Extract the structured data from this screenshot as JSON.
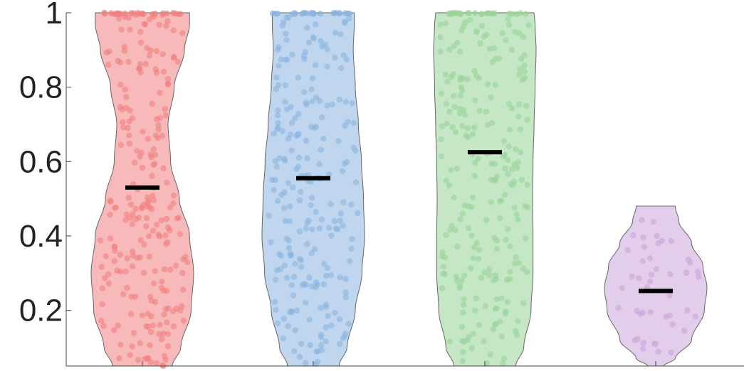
{
  "chart_data": {
    "type": "violin",
    "title": "",
    "xlabel": "",
    "ylabel": "",
    "ylim": [
      0.05,
      1.0
    ],
    "yticks": [
      0.2,
      0.4,
      0.6,
      0.8,
      1
    ],
    "ytick_labels": [
      "0.2",
      "0.4",
      "0.6",
      "0.8",
      "1"
    ],
    "grid": false,
    "series": [
      {
        "color": "#f08080",
        "median": 0.53,
        "range": [
          0.05,
          1.0
        ],
        "n_points": 230,
        "density_profile": [
          [
            0.05,
            0.58
          ],
          [
            0.1,
            0.75
          ],
          [
            0.2,
            0.95
          ],
          [
            0.3,
            1.0
          ],
          [
            0.4,
            0.92
          ],
          [
            0.5,
            0.72
          ],
          [
            0.6,
            0.55
          ],
          [
            0.7,
            0.5
          ],
          [
            0.8,
            0.62
          ],
          [
            0.9,
            0.82
          ],
          [
            0.97,
            0.92
          ],
          [
            1.0,
            0.92
          ]
        ]
      },
      {
        "color": "#8ab4e0",
        "median": 0.555,
        "range": [
          0.05,
          1.0
        ],
        "n_points": 230,
        "density_profile": [
          [
            0.05,
            0.5
          ],
          [
            0.1,
            0.66
          ],
          [
            0.2,
            0.82
          ],
          [
            0.3,
            0.95
          ],
          [
            0.4,
            1.0
          ],
          [
            0.5,
            0.98
          ],
          [
            0.6,
            0.94
          ],
          [
            0.7,
            0.88
          ],
          [
            0.8,
            0.82
          ],
          [
            0.9,
            0.78
          ],
          [
            0.97,
            0.8
          ],
          [
            1.0,
            0.8
          ]
        ]
      },
      {
        "color": "#98d498",
        "median": 0.625,
        "range": [
          0.05,
          1.0
        ],
        "n_points": 230,
        "density_profile": [
          [
            0.05,
            0.6
          ],
          [
            0.1,
            0.76
          ],
          [
            0.2,
            0.9
          ],
          [
            0.3,
            0.94
          ],
          [
            0.4,
            0.94
          ],
          [
            0.5,
            0.93
          ],
          [
            0.6,
            0.94
          ],
          [
            0.7,
            0.96
          ],
          [
            0.8,
            0.98
          ],
          [
            0.9,
            1.0
          ],
          [
            0.97,
            0.98
          ],
          [
            1.0,
            0.96
          ]
        ]
      },
      {
        "color": "#cba4d8",
        "median": 0.252,
        "range": [
          0.05,
          0.48
        ],
        "n_points": 45,
        "density_profile": [
          [
            0.05,
            0.15
          ],
          [
            0.07,
            0.38
          ],
          [
            0.12,
            0.7
          ],
          [
            0.2,
            0.95
          ],
          [
            0.26,
            1.0
          ],
          [
            0.32,
            0.92
          ],
          [
            0.38,
            0.7
          ],
          [
            0.44,
            0.45
          ],
          [
            0.48,
            0.38
          ]
        ]
      }
    ]
  },
  "colors": {
    "axis": "#444444",
    "tick_text": "#222222",
    "median_bar": "#000000"
  }
}
